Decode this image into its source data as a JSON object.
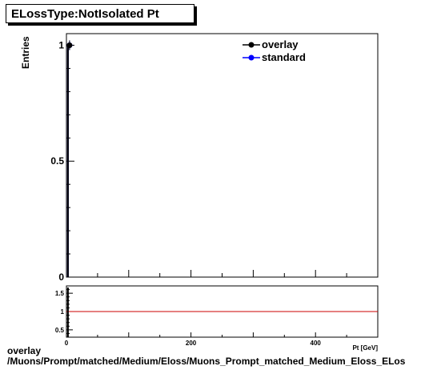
{
  "title": "ELossType:NotIsolated Pt",
  "caption": {
    "line1": "overlay",
    "line2": "/Muons/Prompt/matched/Medium/Eloss/Muons_Prompt_matched_Medium_Eloss_ELos"
  },
  "chart_data": [
    {
      "type": "line",
      "name": "main",
      "ylabel": "Entries",
      "xlim": [
        0,
        500
      ],
      "ylim": [
        0,
        1.05
      ],
      "x_ticks": [],
      "y_ticks": [
        0,
        0.5,
        1
      ],
      "series": [
        {
          "name": "overlay",
          "color": "#000000",
          "marker": "circle",
          "x": [
            5
          ],
          "y": [
            1
          ]
        },
        {
          "name": "standard",
          "color": "#0000ff",
          "marker": "circle",
          "x": [
            5
          ],
          "y": [
            1
          ]
        }
      ],
      "legend": "top-right",
      "grid": false
    },
    {
      "type": "line",
      "name": "ratio",
      "xlabel": "Pt [GeV]",
      "xlim": [
        0,
        500
      ],
      "ylim": [
        0.3,
        1.7
      ],
      "x_ticks": [
        0,
        200,
        400
      ],
      "y_ticks": [
        0.5,
        1,
        1.5
      ],
      "reference_line": {
        "y": 1,
        "color": "#cc0000"
      },
      "grid": false
    }
  ]
}
